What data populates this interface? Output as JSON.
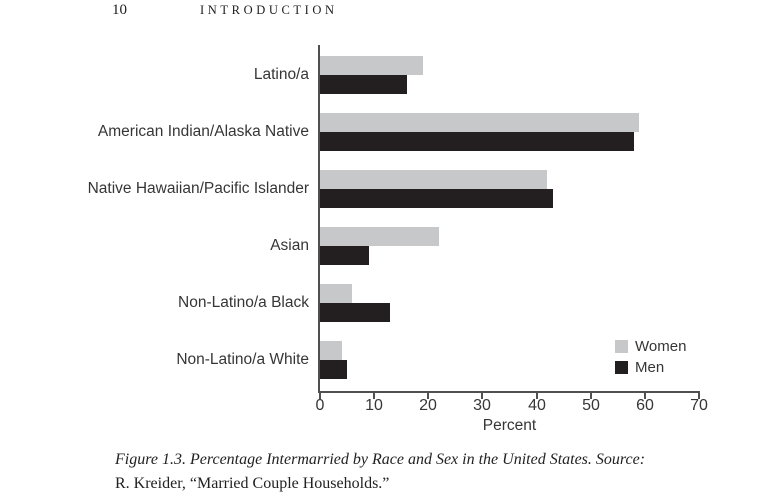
{
  "page": {
    "page_number": "10",
    "running_head": "INTRODUCTION"
  },
  "chart_data": {
    "type": "bar",
    "orientation": "horizontal",
    "categories": [
      "Latino/a",
      "American Indian/Alaska Native",
      "Native Hawaiian/Pacific Islander",
      "Asian",
      "Non-Latino/a Black",
      "Non-Latino/a White"
    ],
    "series": [
      {
        "name": "Women",
        "color": "#c7c8ca",
        "values": [
          19,
          59,
          42,
          22,
          6,
          4
        ]
      },
      {
        "name": "Men",
        "color": "#231f20",
        "values": [
          16,
          58,
          43,
          9,
          13,
          5
        ]
      }
    ],
    "title": "",
    "xlabel": "Percent",
    "ylabel": "",
    "xlim": [
      0,
      70
    ],
    "xticks": [
      0,
      10,
      20,
      30,
      40,
      50,
      60,
      70
    ],
    "grid": false,
    "legend_position": "bottom-right"
  },
  "colors": {
    "axis": "#4f5052",
    "women_bar": "#c7c8ca",
    "men_bar": "#231f20"
  },
  "caption": {
    "line1": "Figure 1.3.  Percentage Intermarried by Race and Sex in the United States. Source:",
    "line2": "R. Kreider, “Married Couple Households.”"
  }
}
